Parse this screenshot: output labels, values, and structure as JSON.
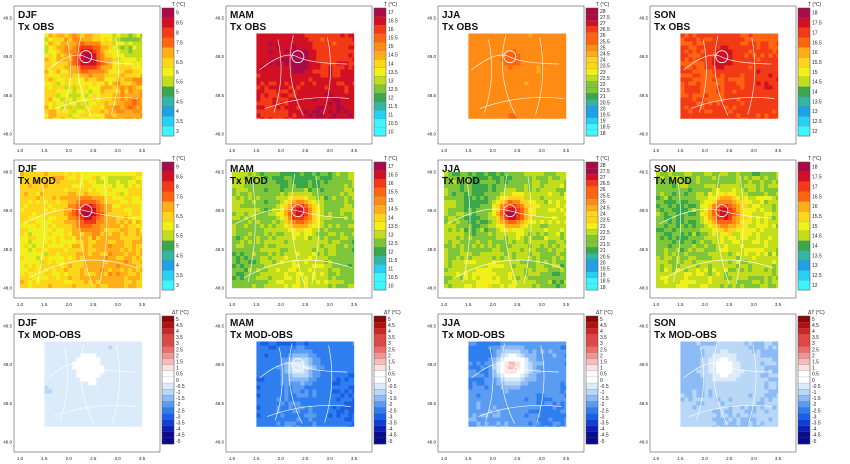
{
  "palettes": {
    "djf": [
      "#3ff5fd",
      "#28d0f6",
      "#1ea1e6",
      "#35b6a4",
      "#3aa84a",
      "#7fc53a",
      "#c2dd1c",
      "#f1f01a",
      "#ffd51c",
      "#ffae1a",
      "#ff8a14",
      "#ff6410",
      "#f23b16",
      "#d21024",
      "#a80b48"
    ],
    "mam": [
      "#3ff5fd",
      "#28d0f6",
      "#1ea1e6",
      "#35b6a4",
      "#3aa84a",
      "#7fc53a",
      "#c2dd1c",
      "#f1f01a",
      "#ffd51c",
      "#ffae1a",
      "#ff8a14",
      "#ff6410",
      "#f23b16",
      "#d21024",
      "#a80b48"
    ],
    "jja": [
      "#3ff5fd",
      "#28d0f6",
      "#1ea1e6",
      "#35b6a4",
      "#3aa84a",
      "#7fc53a",
      "#c2dd1c",
      "#f1f01a",
      "#ffd51c",
      "#ffae1a",
      "#ff8a14",
      "#ff6410",
      "#f23b16",
      "#d21024",
      "#a80b48"
    ],
    "son": [
      "#3ff5fd",
      "#28d0f6",
      "#1ea1e6",
      "#35b6a4",
      "#3aa84a",
      "#7fc53a",
      "#c2dd1c",
      "#f1f01a",
      "#ffd51c",
      "#ffae1a",
      "#ff8a14",
      "#ff6410",
      "#f23b16",
      "#d21024",
      "#a80b48"
    ],
    "diff": [
      "#0a0a8c",
      "#0b1fb4",
      "#0f3fd4",
      "#1a5ee6",
      "#2f7eef",
      "#5b9cf2",
      "#8cbbf5",
      "#b9d7f7",
      "#dcebfa",
      "#ffffff",
      "#ffffff",
      "#fde2e2",
      "#f9bcbc",
      "#f29494",
      "#ea6c6c",
      "#e04646",
      "#d02424",
      "#b40f0f",
      "#8c0808"
    ]
  },
  "chart_data": [
    {
      "type": "heatmap",
      "season": "DJF",
      "variable": "Tx OBS",
      "legend_title": "T (°C)",
      "legend_labels": [
        "9",
        "8.5",
        "8",
        "7.5",
        "7",
        "6.5",
        "6",
        "5.5",
        "5",
        "4.5",
        "4",
        "3.5",
        "3"
      ],
      "value_range": [
        3,
        9
      ],
      "map_range": [
        5.0,
        7.6
      ],
      "hot_center_value": 8.8,
      "palette": "djf",
      "xlim": [
        1.0,
        3.5
      ],
      "ylim": [
        48.0,
        49.5
      ],
      "xticks": [
        "1.0",
        "1.5",
        "2.0",
        "2.5",
        "3.0",
        "3.5"
      ],
      "yticks": [
        "49.5",
        "49.0",
        "48.5",
        "48.0"
      ],
      "city_lon": 2.35,
      "city_lat": 49.0,
      "domain": [
        1.5,
        3.5,
        48.2,
        49.3
      ]
    },
    {
      "type": "heatmap",
      "season": "MAM",
      "variable": "Tx OBS",
      "legend_title": "T (°C)",
      "legend_labels": [
        "17",
        "16.5",
        "16",
        "15.5",
        "15",
        "14.5",
        "14",
        "13.5",
        "13",
        "12.5",
        "12",
        "11.5",
        "11",
        "10.5",
        "10"
      ],
      "value_range": [
        10,
        17
      ],
      "map_range": [
        15.5,
        16.8
      ],
      "hot_center_value": 16.9,
      "palette": "mam",
      "xlim": [
        1.0,
        3.5
      ],
      "ylim": [
        48.0,
        49.5
      ],
      "xticks": [
        "1.0",
        "1.5",
        "2.0",
        "2.5",
        "3.0",
        "3.5"
      ],
      "yticks": [
        "49.5",
        "49.0",
        "48.5",
        "48.0"
      ],
      "city_lon": 2.35,
      "city_lat": 49.0,
      "domain": [
        1.5,
        3.5,
        48.2,
        49.3
      ]
    },
    {
      "type": "heatmap",
      "season": "JJA",
      "variable": "Tx OBS",
      "legend_title": "T (°C)",
      "legend_labels": [
        "28",
        "27.5",
        "27",
        "26.5",
        "26",
        "25.5",
        "25",
        "24.5",
        "24",
        "23.5",
        "23",
        "22.5",
        "22",
        "21.5",
        "21",
        "20.5",
        "20",
        "19.5",
        "19",
        "18.5",
        "18"
      ],
      "value_range": [
        18,
        28
      ],
      "map_range": [
        24.4,
        25.5
      ],
      "hot_center_value": 25.6,
      "palette": "jja",
      "xlim": [
        1.0,
        3.5
      ],
      "ylim": [
        48.0,
        49.5
      ],
      "xticks": [
        "1.0",
        "1.5",
        "2.0",
        "2.5",
        "3.0",
        "3.5"
      ],
      "yticks": [
        "49.5",
        "49.0",
        "48.5",
        "48.0"
      ],
      "city_lon": 2.35,
      "city_lat": 49.0,
      "domain": [
        1.5,
        3.5,
        48.2,
        49.3
      ]
    },
    {
      "type": "heatmap",
      "season": "SON",
      "variable": "Tx OBS",
      "legend_title": "T (°C)",
      "legend_labels": [
        "18",
        "17.5",
        "17",
        "16.5",
        "16",
        "15.5",
        "15",
        "14.5",
        "14",
        "13.5",
        "13",
        "12.5",
        "12"
      ],
      "value_range": [
        12,
        18
      ],
      "map_range": [
        16.3,
        17.4
      ],
      "hot_center_value": 17.5,
      "palette": "son",
      "xlim": [
        1.0,
        3.5
      ],
      "ylim": [
        48.0,
        49.5
      ],
      "xticks": [
        "1.0",
        "1.5",
        "2.0",
        "2.5",
        "3.0",
        "3.5"
      ],
      "yticks": [
        "49.5",
        "49.0",
        "48.5",
        "48.0"
      ],
      "city_lon": 2.35,
      "city_lat": 49.0,
      "domain": [
        1.5,
        3.5,
        48.2,
        49.3
      ]
    },
    {
      "type": "heatmap",
      "season": "DJF",
      "variable": "Tx MOD",
      "legend_title": "T (°C)",
      "legend_labels": [
        "9",
        "8.5",
        "8",
        "7.5",
        "7",
        "6.5",
        "6",
        "5.5",
        "5",
        "4.5",
        "4",
        "3.5",
        "3"
      ],
      "value_range": [
        3,
        9
      ],
      "map_range": [
        5.5,
        7.2
      ],
      "hot_center_value": 8.7,
      "palette": "djf",
      "xlim": [
        1.0,
        3.5
      ],
      "ylim": [
        48.0,
        49.5
      ],
      "xticks": [
        "1.0",
        "1.5",
        "2.0",
        "2.5",
        "3.0",
        "3.5"
      ],
      "yticks": [
        "49.5",
        "49.0",
        "48.5",
        "48.0"
      ],
      "city_lon": 2.35,
      "city_lat": 49.0,
      "domain": [
        1.0,
        3.5,
        48.0,
        49.5
      ]
    },
    {
      "type": "heatmap",
      "season": "MAM",
      "variable": "Tx MOD",
      "legend_title": "T (°C)",
      "legend_labels": [
        "17",
        "16.5",
        "16",
        "15.5",
        "15",
        "14.5",
        "14",
        "13.5",
        "13",
        "12.5",
        "12",
        "11.5",
        "11",
        "10.5",
        "10"
      ],
      "value_range": [
        10,
        17
      ],
      "map_range": [
        11.8,
        13.6
      ],
      "hot_center_value": 16.5,
      "palette": "mam",
      "xlim": [
        1.0,
        3.5
      ],
      "ylim": [
        48.0,
        49.5
      ],
      "xticks": [
        "1.0",
        "1.5",
        "2.0",
        "2.5",
        "3.0",
        "3.5"
      ],
      "yticks": [
        "49.5",
        "49.0",
        "48.5",
        "48.0"
      ],
      "city_lon": 2.35,
      "city_lat": 49.0,
      "domain": [
        1.0,
        3.5,
        48.0,
        49.5
      ]
    },
    {
      "type": "heatmap",
      "season": "JJA",
      "variable": "Tx MOD",
      "legend_title": "T (°C)",
      "legend_labels": [
        "28",
        "27.5",
        "27",
        "26.5",
        "26",
        "25.5",
        "25",
        "24.5",
        "24",
        "23.5",
        "23",
        "22.5",
        "22",
        "21.5",
        "21",
        "20.5",
        "20",
        "19.5",
        "19",
        "18.5",
        "18"
      ],
      "value_range": [
        18,
        28
      ],
      "map_range": [
        20.5,
        23.4
      ],
      "hot_center_value": 27.6,
      "palette": "jja",
      "xlim": [
        1.0,
        3.5
      ],
      "ylim": [
        48.0,
        49.5
      ],
      "xticks": [
        "1.0",
        "1.5",
        "2.0",
        "2.5",
        "3.0",
        "3.5"
      ],
      "yticks": [
        "49.5",
        "49.0",
        "48.5",
        "48.0"
      ],
      "city_lon": 2.35,
      "city_lat": 49.0,
      "domain": [
        1.0,
        3.5,
        48.0,
        49.5
      ]
    },
    {
      "type": "heatmap",
      "season": "SON",
      "variable": "Tx MOD",
      "legend_title": "T (°C)",
      "legend_labels": [
        "18",
        "17.5",
        "17",
        "16.5",
        "16",
        "15.5",
        "15",
        "14.5",
        "14",
        "13.5",
        "13",
        "12.5",
        "12"
      ],
      "value_range": [
        12,
        18
      ],
      "map_range": [
        13.6,
        15.3
      ],
      "hot_center_value": 17.6,
      "palette": "son",
      "xlim": [
        1.0,
        3.5
      ],
      "ylim": [
        48.0,
        49.5
      ],
      "xticks": [
        "1.0",
        "1.5",
        "2.0",
        "2.5",
        "3.0",
        "3.5"
      ],
      "yticks": [
        "49.5",
        "49.0",
        "48.5",
        "48.0"
      ],
      "city_lon": 2.35,
      "city_lat": 49.0,
      "domain": [
        1.0,
        3.5,
        48.0,
        49.5
      ]
    },
    {
      "type": "heatmap",
      "season": "DJF",
      "variable": "Tx MOD-OBS",
      "legend_title": "ΔT (°C)",
      "legend_labels": [
        "5",
        "4.5",
        "4",
        "3.5",
        "3",
        "2.5",
        "2",
        "1.5",
        "1",
        "0.5",
        "0",
        "-0.5",
        "-1",
        "-1.5",
        "-2",
        "-2.5",
        "-3",
        "-3.5",
        "-4",
        "-4.5",
        "-5"
      ],
      "value_range": [
        -5,
        5
      ],
      "map_range": [
        -0.9,
        -0.3
      ],
      "hot_center_value": 0.2,
      "palette": "diff",
      "xlim": [
        1.0,
        3.5
      ],
      "ylim": [
        48.0,
        49.5
      ],
      "xticks": [
        "1.0",
        "1.5",
        "2.0",
        "2.5",
        "3.0",
        "3.5"
      ],
      "yticks": [
        "49.5",
        "49.0",
        "48.5",
        "48.0"
      ],
      "city_lon": 2.35,
      "city_lat": 49.0,
      "domain": [
        1.5,
        3.5,
        48.2,
        49.3
      ]
    },
    {
      "type": "heatmap",
      "season": "MAM",
      "variable": "Tx MOD-OBS",
      "legend_title": "ΔT (°C)",
      "legend_labels": [
        "5",
        "4.5",
        "4",
        "3.5",
        "3",
        "2.5",
        "2",
        "1.5",
        "1",
        "0.5",
        "0",
        "-0.5",
        "-1",
        "-1.5",
        "-2",
        "-2.5",
        "-3",
        "-3.5",
        "-4",
        "-4.5",
        "-5"
      ],
      "value_range": [
        -5,
        5
      ],
      "map_range": [
        -3.3,
        -2.1
      ],
      "hot_center_value": -0.3,
      "palette": "diff",
      "xlim": [
        1.0,
        3.5
      ],
      "ylim": [
        48.0,
        49.5
      ],
      "xticks": [
        "1.0",
        "1.5",
        "2.0",
        "2.5",
        "3.0",
        "3.5"
      ],
      "yticks": [
        "49.5",
        "49.0",
        "48.5",
        "48.0"
      ],
      "city_lon": 2.35,
      "city_lat": 49.0,
      "domain": [
        1.5,
        3.5,
        48.2,
        49.3
      ]
    },
    {
      "type": "heatmap",
      "season": "JJA",
      "variable": "Tx MOD-OBS",
      "legend_title": "ΔT (°C)",
      "legend_labels": [
        "5",
        "4.5",
        "4",
        "3.5",
        "3",
        "2.5",
        "2",
        "1.5",
        "1",
        "0.5",
        "0",
        "-0.5",
        "-1",
        "-1.5",
        "-2",
        "-2.5",
        "-3",
        "-3.5",
        "-4",
        "-4.5",
        "-5"
      ],
      "value_range": [
        -5,
        5
      ],
      "map_range": [
        -2.9,
        -1.6
      ],
      "hot_center_value": 1.6,
      "palette": "diff",
      "xlim": [
        1.0,
        3.5
      ],
      "ylim": [
        48.0,
        49.5
      ],
      "xticks": [
        "1.0",
        "1.5",
        "2.0",
        "2.5",
        "3.0",
        "3.5"
      ],
      "yticks": [
        "49.5",
        "49.0",
        "48.5",
        "48.0"
      ],
      "city_lon": 2.35,
      "city_lat": 49.0,
      "domain": [
        1.5,
        3.5,
        48.2,
        49.3
      ]
    },
    {
      "type": "heatmap",
      "season": "SON",
      "variable": "Tx MOD-OBS",
      "legend_title": "ΔT (°C)",
      "legend_labels": [
        "5",
        "4.5",
        "4",
        "3.5",
        "3",
        "2.5",
        "2",
        "1.5",
        "1",
        "0.5",
        "0",
        "-0.5",
        "-1",
        "-1.5",
        "-2",
        "-2.5",
        "-3",
        "-3.5",
        "-4",
        "-4.5",
        "-5"
      ],
      "value_range": [
        -5,
        5
      ],
      "map_range": [
        -1.7,
        -0.9
      ],
      "hot_center_value": 0.1,
      "palette": "diff",
      "xlim": [
        1.0,
        3.5
      ],
      "ylim": [
        48.0,
        49.5
      ],
      "xticks": [
        "1.0",
        "1.5",
        "2.0",
        "2.5",
        "3.0",
        "3.5"
      ],
      "yticks": [
        "49.5",
        "49.0",
        "48.5",
        "48.0"
      ],
      "city_lon": 2.35,
      "city_lat": 49.0,
      "domain": [
        1.5,
        3.5,
        48.2,
        49.3
      ]
    }
  ]
}
